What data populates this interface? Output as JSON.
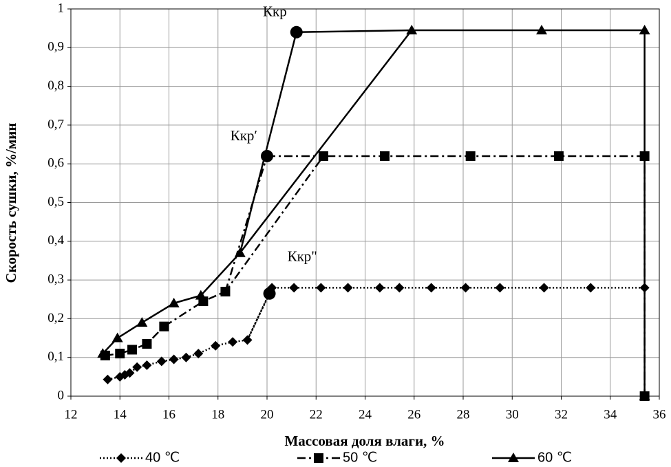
{
  "chart_data": {
    "type": "line",
    "x_label": "Массовая доля влаги, %",
    "y_label": "Скорость сушки, %/мин",
    "xlim": [
      12,
      36
    ],
    "xticks": [
      12,
      14,
      16,
      18,
      20,
      22,
      24,
      26,
      28,
      30,
      32,
      34,
      36
    ],
    "ylim": [
      0,
      1
    ],
    "yticks": [
      0,
      {
        "value": 0.1,
        "label": "0,1"
      },
      {
        "value": 0.2,
        "label": "0,2"
      },
      {
        "value": 0.3,
        "label": "0,3"
      },
      {
        "value": 0.4,
        "label": "0,4"
      },
      {
        "value": 0.5,
        "label": "0,5"
      },
      {
        "value": 0.6,
        "label": "0,6"
      },
      {
        "value": 0.7,
        "label": "0,7"
      },
      {
        "value": 0.8,
        "label": "0,8"
      },
      {
        "value": 0.9,
        "label": "0,9"
      },
      1
    ],
    "grid": true,
    "legend": "bottom",
    "series": [
      {
        "name": "40 ℃",
        "color": "#000000",
        "marker": "diamond",
        "dash": "dotted",
        "x": [
          13.5,
          14.0,
          14.2,
          14.4,
          14.7,
          15.1,
          15.7,
          16.2,
          16.7,
          17.2,
          17.9,
          18.6,
          19.2,
          20.2,
          21.1,
          22.2,
          23.3,
          24.6,
          25.4,
          26.7,
          28.1,
          29.5,
          31.3,
          33.2,
          35.4
        ],
        "values": [
          0.043,
          0.05,
          0.055,
          0.06,
          0.075,
          0.08,
          0.09,
          0.095,
          0.1,
          0.11,
          0.13,
          0.14,
          0.145,
          0.28,
          0.28,
          0.28,
          0.28,
          0.28,
          0.28,
          0.28,
          0.28,
          0.28,
          0.28,
          0.28,
          0.28
        ]
      },
      {
        "name": "50 ℃",
        "color": "#000000",
        "marker": "square",
        "dash": "dashdot",
        "x": [
          13.4,
          14.0,
          14.5,
          15.1,
          15.8,
          17.4,
          18.3,
          22.3,
          24.8,
          28.3,
          31.9,
          35.4,
          35.4
        ],
        "values": [
          0.105,
          0.11,
          0.12,
          0.135,
          0.18,
          0.245,
          0.27,
          0.62,
          0.62,
          0.62,
          0.62,
          0.62,
          0
        ]
      },
      {
        "name": "60 ℃",
        "color": "#000000",
        "marker": "triangle",
        "dash": "solid",
        "x": [
          13.3,
          13.9,
          14.9,
          16.2,
          17.3,
          18.9,
          25.9,
          31.2,
          35.4,
          35.4
        ],
        "values": [
          0.11,
          0.15,
          0.19,
          0.24,
          0.26,
          0.37,
          0.945,
          0.945,
          0.945,
          0
        ]
      }
    ],
    "critical_points": {
      "series": [
        2,
        1,
        0
      ],
      "x": [
        21.2,
        20.0,
        20.1
      ],
      "values": [
        0.94,
        0.62,
        0.265
      ],
      "labels": [
        "Ккр",
        "Ккр′",
        "Ккр\""
      ]
    }
  }
}
